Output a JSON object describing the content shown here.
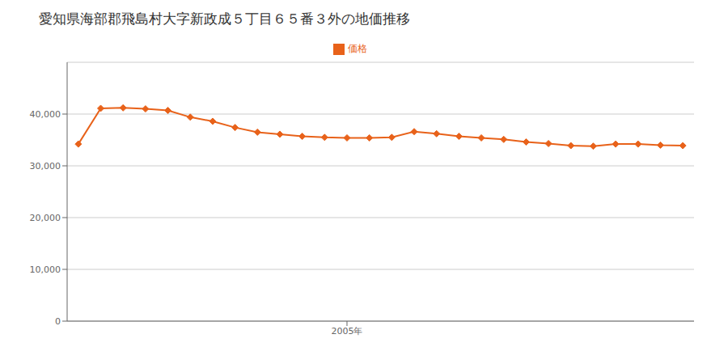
{
  "chart_data": {
    "type": "line",
    "title": "愛知県海部郡飛島村大字新政成５丁目６５番３外の地価推移",
    "x": [
      1993,
      1994,
      1995,
      1996,
      1997,
      1998,
      1999,
      2000,
      2001,
      2002,
      2003,
      2004,
      2005,
      2006,
      2007,
      2008,
      2009,
      2010,
      2011,
      2012,
      2013,
      2014,
      2015,
      2016,
      2017,
      2018,
      2019,
      2020
    ],
    "series": [
      {
        "name": "価格",
        "color": "#e8621a",
        "marker": "diamond",
        "values": [
          34200,
          41100,
          41200,
          41000,
          40700,
          39400,
          38600,
          37400,
          36500,
          36100,
          35700,
          35500,
          35400,
          35400,
          35500,
          36600,
          36200,
          35700,
          35400,
          35100,
          34600,
          34300,
          33900,
          33800,
          34200,
          34200,
          34000,
          33900
        ]
      }
    ],
    "xlim": [
      1992.5,
      2020.5
    ],
    "xticks": [
      {
        "value": 2005,
        "label": "2005年"
      }
    ],
    "ylim": [
      0,
      50000
    ],
    "yticks": [
      0,
      {
        "value": 10000,
        "label": "10,000"
      },
      {
        "value": 20000,
        "label": "20,000"
      },
      {
        "value": 30000,
        "label": "30,000"
      },
      {
        "value": 40000,
        "label": "40,000"
      }
    ],
    "grid": "y",
    "legend": "top"
  }
}
